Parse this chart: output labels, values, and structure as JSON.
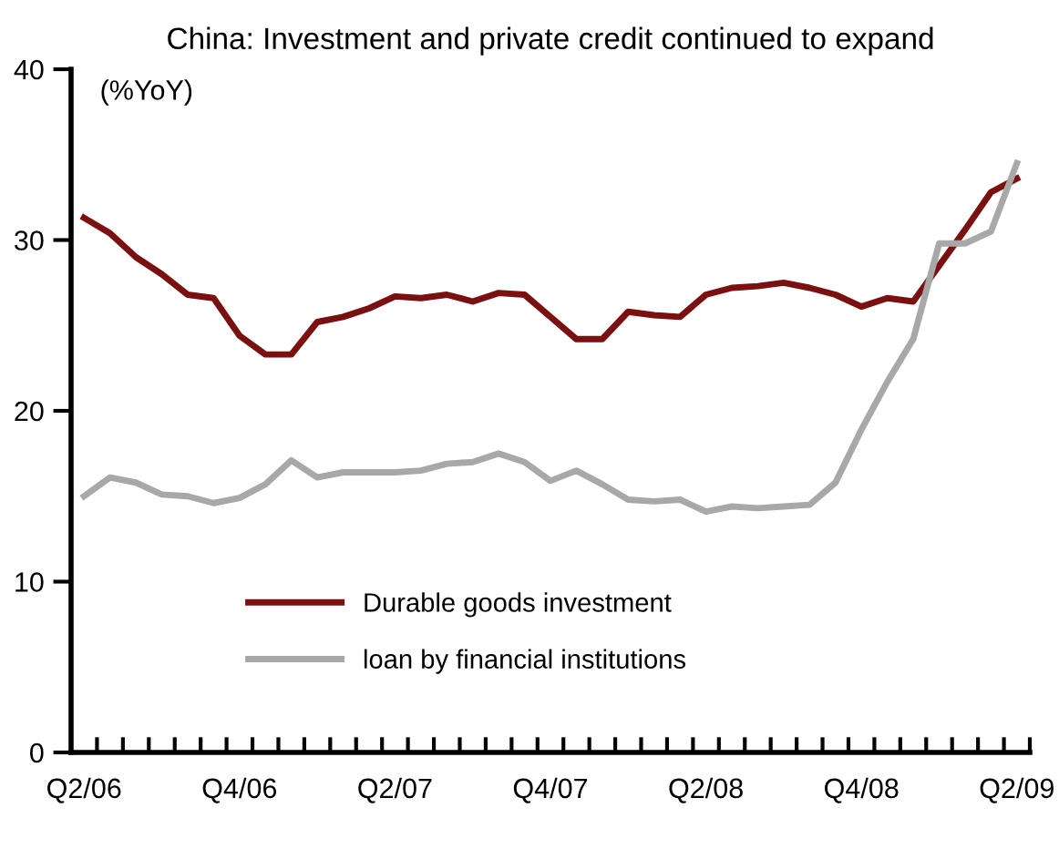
{
  "chart_data": {
    "type": "line",
    "title": "China: Investment and private credit continued to expand",
    "ylabel": "(%YoY)",
    "categories": [
      "Q2/06",
      null,
      null,
      null,
      null,
      null,
      "Q4/06",
      null,
      null,
      null,
      null,
      null,
      "Q2/07",
      null,
      null,
      null,
      null,
      null,
      "Q4/07",
      null,
      null,
      null,
      null,
      null,
      "Q2/08",
      null,
      null,
      null,
      null,
      null,
      "Q4/08",
      null,
      null,
      null,
      null,
      null,
      "Q2/09"
    ],
    "ylim": [
      0,
      40
    ],
    "yticks": [
      0,
      10,
      20,
      30,
      40
    ],
    "grid": false,
    "legend": "bottom left",
    "marker": "none",
    "line_style": "solid",
    "series": [
      {
        "name": "Durable goods investment",
        "color": "#7b1010",
        "values": [
          31.3,
          30.4,
          29,
          28,
          26.8,
          26.6,
          24.4,
          23.3,
          23.3,
          25.2,
          25.5,
          26,
          26.7,
          26.6,
          26.8,
          26.4,
          26.9,
          26.8,
          25.5,
          24.2,
          24.2,
          25.8,
          25.6,
          25.5,
          26.8,
          27.2,
          27.3,
          27.5,
          27.2,
          26.8,
          26.1,
          26.6,
          26.4,
          28.5,
          30.6,
          32.8,
          33.6
        ]
      },
      {
        "name": "loan by financial institutions",
        "color": "#a8a8a8",
        "values": [
          15.0,
          16.1,
          15.8,
          15.1,
          15.0,
          14.6,
          14.9,
          15.7,
          17.1,
          16.1,
          16.4,
          16.4,
          16.4,
          16.5,
          16.9,
          17.0,
          17.5,
          17.0,
          15.9,
          16.5,
          15.7,
          14.8,
          14.7,
          14.8,
          14.1,
          14.4,
          14.3,
          14.4,
          14.5,
          15.8,
          18.9,
          21.7,
          24.2,
          29.8,
          29.8,
          30.5,
          34.5
        ]
      }
    ]
  }
}
